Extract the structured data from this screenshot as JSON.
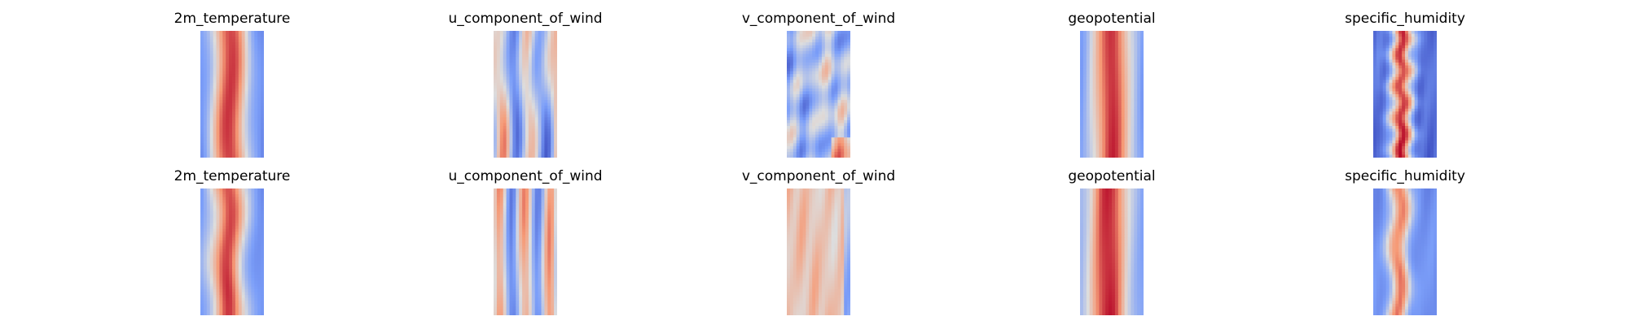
{
  "chart_data": {
    "type": "heatmap",
    "layout": {
      "rows": 2,
      "cols": 5
    },
    "colormap": "coolwarm",
    "grid": false,
    "axes_visible": false,
    "panels": [
      {
        "row": 0,
        "col": 0,
        "title": "2m_temperature",
        "pattern": "temperature"
      },
      {
        "row": 0,
        "col": 1,
        "title": "u_component_of_wind",
        "pattern": "uwind"
      },
      {
        "row": 0,
        "col": 2,
        "title": "v_component_of_wind",
        "pattern": "vwind"
      },
      {
        "row": 0,
        "col": 3,
        "title": "geopotential",
        "pattern": "geopotential"
      },
      {
        "row": 0,
        "col": 4,
        "title": "specific_humidity",
        "pattern": "humidity"
      },
      {
        "row": 1,
        "col": 0,
        "title": "2m_temperature",
        "pattern": "temperature2"
      },
      {
        "row": 1,
        "col": 1,
        "title": "u_component_of_wind",
        "pattern": "uwind2"
      },
      {
        "row": 1,
        "col": 2,
        "title": "v_component_of_wind",
        "pattern": "vwind2"
      },
      {
        "row": 1,
        "col": 3,
        "title": "geopotential",
        "pattern": "geopotential2"
      },
      {
        "row": 1,
        "col": 4,
        "title": "specific_humidity",
        "pattern": "humidity2"
      }
    ]
  }
}
